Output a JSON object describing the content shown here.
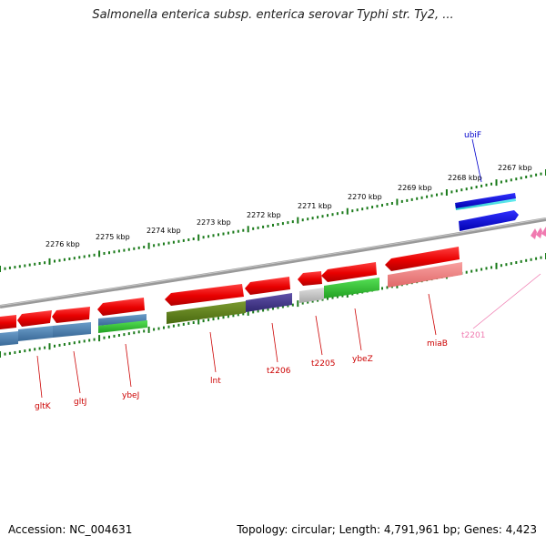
{
  "title": "Salmonella enterica subsp. enterica serovar Typhi str. Ty2, ...",
  "footer": {
    "accession_label": "Accession:",
    "accession": "NC_004631",
    "topology_label": "Topology:",
    "topology": "circular",
    "length_label": "Length:",
    "length": "4,791,961 bp",
    "genes_label": "Genes:",
    "genes": "4,423"
  },
  "scale_labels": [
    "2276 kbp",
    "2275 kbp",
    "2274 kbp",
    "2273 kbp",
    "2272 kbp",
    "2271 kbp",
    "2270 kbp",
    "2269 kbp",
    "2268 kbp",
    "2267 kbp"
  ],
  "gene_labels": [
    {
      "name": "gltK",
      "color": "#cc0000"
    },
    {
      "name": "gltJ",
      "color": "#cc0000"
    },
    {
      "name": "ybeJ",
      "color": "#cc0000"
    },
    {
      "name": "lnt",
      "color": "#cc0000"
    },
    {
      "name": "t2206",
      "color": "#cc0000"
    },
    {
      "name": "t2205",
      "color": "#cc0000"
    },
    {
      "name": "ybeZ",
      "color": "#cc0000"
    },
    {
      "name": "miaB",
      "color": "#cc0000"
    },
    {
      "name": "t2201",
      "color": "#f07ab0"
    },
    {
      "name": "ubiF",
      "color": "#0000cc"
    }
  ],
  "colors": {
    "cds": "#ee1111",
    "backbone": "#888888",
    "ticks": "#1a7a1a",
    "blue": "#1111dd",
    "cyan": "#33dddd",
    "steel": "#4a7fb0",
    "olive": "#5f7f1f",
    "purple": "#4a3f8a",
    "green": "#33cc33",
    "gray": "#bbbbbb",
    "salmon": "#f08080",
    "pink": "#f07ab0"
  }
}
